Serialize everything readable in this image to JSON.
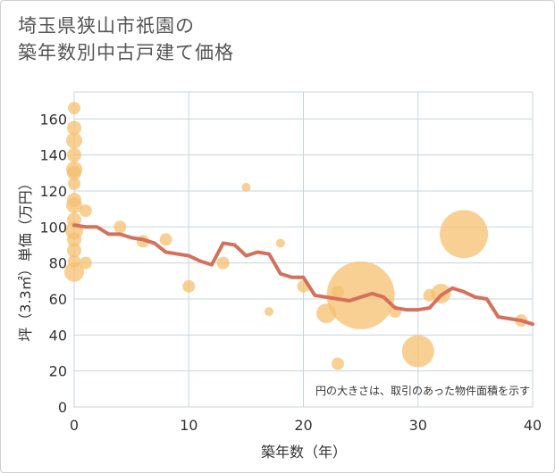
{
  "chart_data": {
    "type": "scatter",
    "title_line1": "埼玉県狭山市祇園の",
    "title_line2": "築年数別中古戸建て価格",
    "xlabel": "築年数（年）",
    "ylabel": "坪（3.3㎡）単価（万円）",
    "xlim": [
      0,
      40
    ],
    "ylim": [
      0,
      175
    ],
    "xticks": [
      0,
      10,
      20,
      30,
      40
    ],
    "yticks": [
      0,
      20,
      40,
      60,
      80,
      100,
      120,
      140,
      160
    ],
    "grid": true,
    "note": "円の大きさは、取引のあった物件面積を示す",
    "colors": {
      "bubble": "#f5c06f",
      "line": "#d4705b",
      "grid": "#c8d3dd"
    },
    "bubbles": [
      {
        "x": 0,
        "y": 166,
        "r": 7
      },
      {
        "x": 0,
        "y": 155,
        "r": 8
      },
      {
        "x": 0,
        "y": 148,
        "r": 9
      },
      {
        "x": 0,
        "y": 140,
        "r": 8
      },
      {
        "x": 0,
        "y": 132,
        "r": 9
      },
      {
        "x": 0,
        "y": 130,
        "r": 8
      },
      {
        "x": 0,
        "y": 124,
        "r": 7
      },
      {
        "x": 0,
        "y": 115,
        "r": 8
      },
      {
        "x": 0,
        "y": 112,
        "r": 9
      },
      {
        "x": 0,
        "y": 104,
        "r": 8
      },
      {
        "x": 0,
        "y": 98,
        "r": 10
      },
      {
        "x": 0,
        "y": 93,
        "r": 8
      },
      {
        "x": 0,
        "y": 87,
        "r": 8
      },
      {
        "x": 0,
        "y": 81,
        "r": 7
      },
      {
        "x": 0,
        "y": 75,
        "r": 11
      },
      {
        "x": 1,
        "y": 109,
        "r": 7
      },
      {
        "x": 1,
        "y": 80,
        "r": 7
      },
      {
        "x": 4,
        "y": 100,
        "r": 7
      },
      {
        "x": 6,
        "y": 92,
        "r": 7
      },
      {
        "x": 8,
        "y": 93,
        "r": 7
      },
      {
        "x": 10,
        "y": 67,
        "r": 7
      },
      {
        "x": 13,
        "y": 80,
        "r": 7
      },
      {
        "x": 15,
        "y": 122,
        "r": 5
      },
      {
        "x": 17,
        "y": 53,
        "r": 5
      },
      {
        "x": 18,
        "y": 91,
        "r": 5
      },
      {
        "x": 20,
        "y": 67,
        "r": 7
      },
      {
        "x": 22,
        "y": 52,
        "r": 11
      },
      {
        "x": 23,
        "y": 64,
        "r": 7
      },
      {
        "x": 23,
        "y": 24,
        "r": 7
      },
      {
        "x": 25,
        "y": 62,
        "r": 38
      },
      {
        "x": 28,
        "y": 53,
        "r": 7
      },
      {
        "x": 30,
        "y": 31,
        "r": 18
      },
      {
        "x": 31,
        "y": 62,
        "r": 7
      },
      {
        "x": 32,
        "y": 63,
        "r": 11
      },
      {
        "x": 34,
        "y": 96,
        "r": 27
      },
      {
        "x": 39,
        "y": 48,
        "r": 7
      }
    ],
    "trend": {
      "x": [
        0,
        1,
        2,
        3,
        4,
        5,
        6,
        7,
        8,
        9,
        10,
        11,
        12,
        13,
        14,
        15,
        16,
        17,
        18,
        19,
        20,
        21,
        22,
        23,
        24,
        25,
        26,
        27,
        28,
        29,
        30,
        31,
        32,
        33,
        34,
        35,
        36,
        37,
        38,
        39,
        40
      ],
      "y": [
        101,
        100,
        100,
        96,
        96,
        94,
        93,
        91,
        86,
        85,
        84,
        81,
        79,
        91,
        90,
        84,
        86,
        85,
        74,
        72,
        72,
        62,
        61,
        60,
        59,
        61,
        63,
        61,
        55,
        54,
        54,
        55,
        62,
        66,
        64,
        61,
        60,
        50,
        49,
        48,
        46
      ]
    }
  }
}
